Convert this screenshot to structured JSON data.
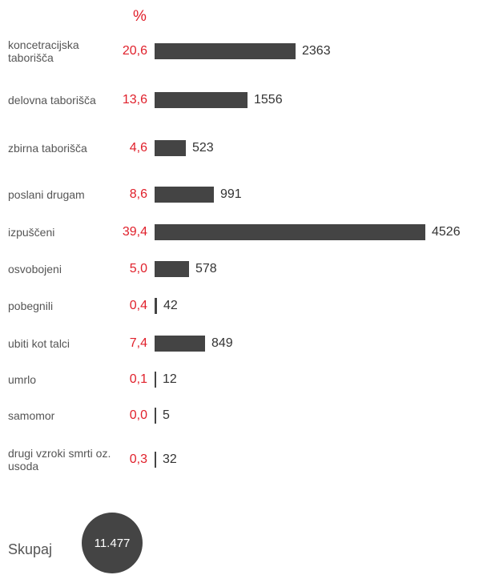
{
  "chart_data": {
    "type": "bar",
    "pct_header": "%",
    "categories": [
      "koncetracijska taborišča",
      "delovna taborišča",
      "zbirna taborišča",
      "poslani drugam",
      "izpuščeni",
      "osvobojeni",
      "pobegnili",
      "ubiti kot talci",
      "umrlo",
      "samomor",
      "drugi vzroki smrti oz. usoda"
    ],
    "percentages": [
      "20,6",
      "13,6",
      "4,6",
      "8,6",
      "39,4",
      "5,0",
      "0,4",
      "7,4",
      "0,1",
      "0,0",
      "0,3"
    ],
    "values": [
      2363,
      1556,
      523,
      991,
      4526,
      578,
      42,
      849,
      12,
      5,
      32
    ],
    "colors": {
      "bar": "#444444",
      "percent": "#e0202b",
      "label": "#555555"
    }
  },
  "total": {
    "label": "Skupaj",
    "value": "11.477"
  }
}
